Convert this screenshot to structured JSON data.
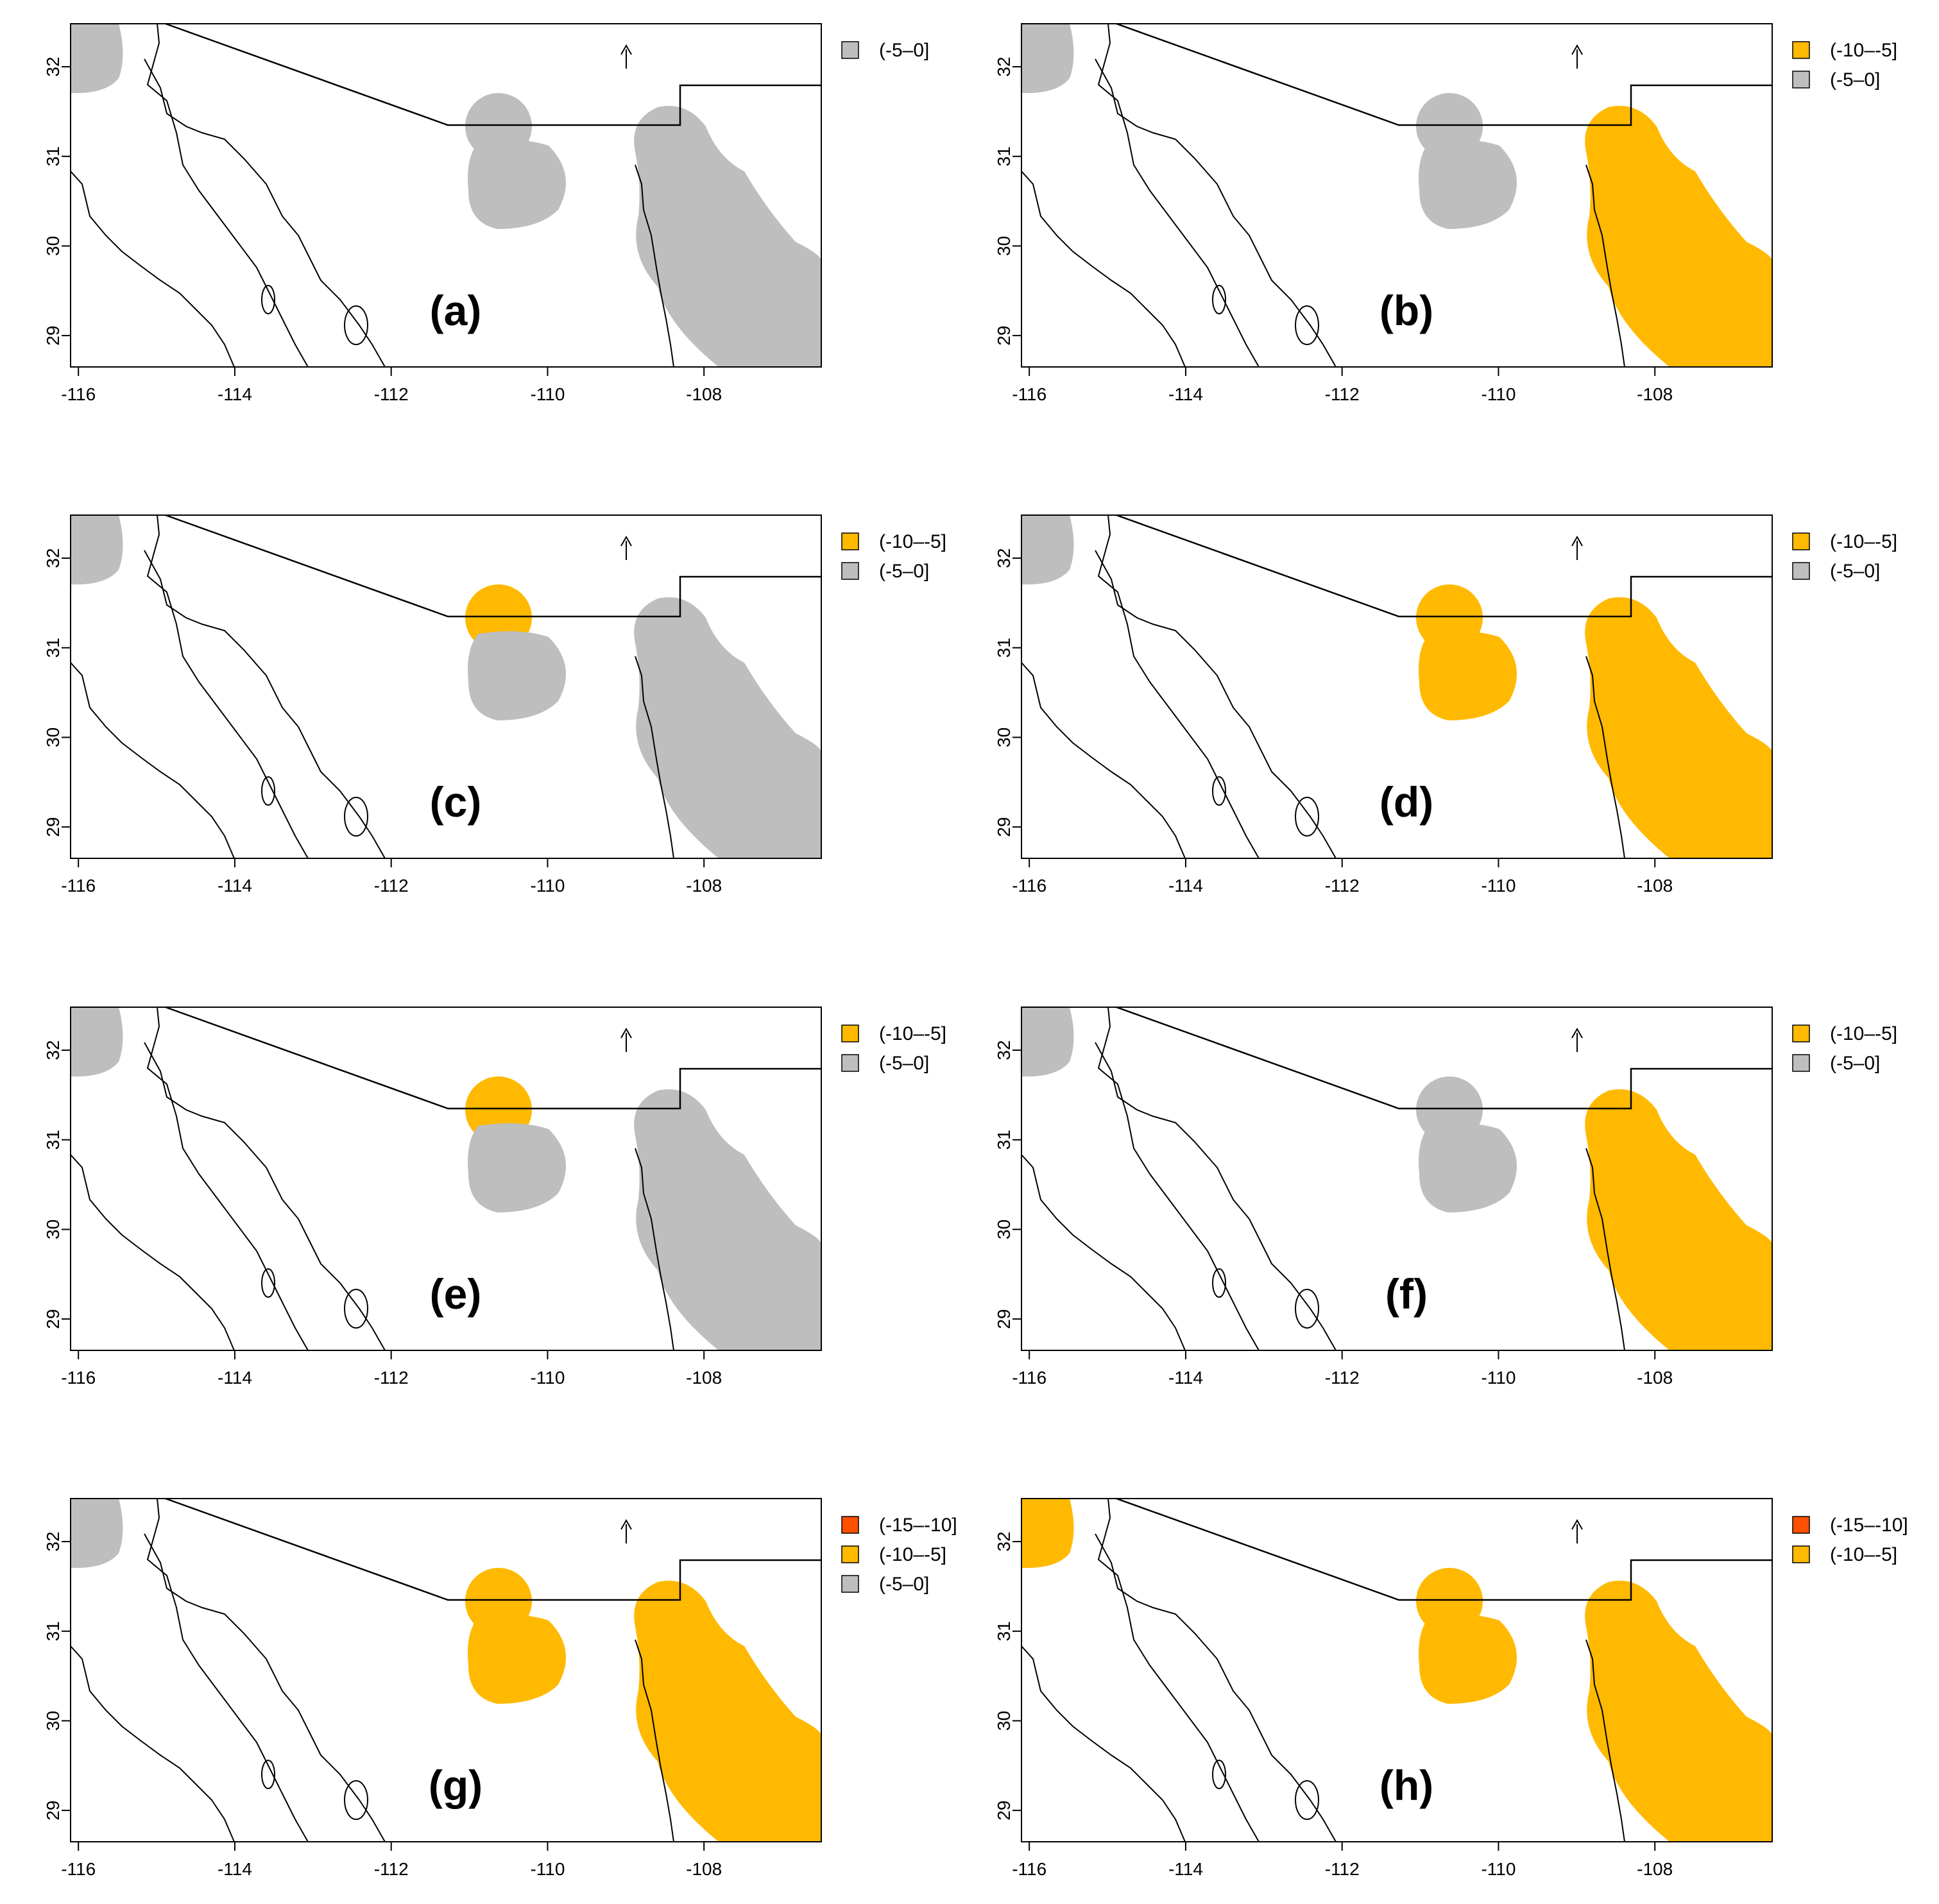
{
  "figure": {
    "x_ticks": [
      "-116",
      "-114",
      "-112",
      "-110",
      "-108"
    ],
    "y_ticks": [
      "29",
      "30",
      "31",
      "32"
    ],
    "north_label": "N",
    "colors": {
      "gray": "#bebebe",
      "orange": "#ffb900",
      "red": "#ff5000",
      "outline": "#000000"
    },
    "panels": [
      {
        "id": "a",
        "label": "(a)",
        "legend": [
          {
            "text": "(-5–0]",
            "color": "#bebebe"
          }
        ],
        "fill": {
          "nw_blob": "#bebebe",
          "center_upper": "#bebebe",
          "center_lower": "#bebebe",
          "east": "#bebebe"
        }
      },
      {
        "id": "b",
        "label": "(b)",
        "legend": [
          {
            "text": "(-10–-5]",
            "color": "#ffb900"
          },
          {
            "text": "(-5–0]",
            "color": "#bebebe"
          }
        ],
        "fill": {
          "nw_blob": "#bebebe",
          "center_upper": "#bebebe",
          "center_lower": "#bebebe",
          "east": "#ffb900"
        }
      },
      {
        "id": "c",
        "label": "(c)",
        "legend": [
          {
            "text": "(-10–-5]",
            "color": "#ffb900"
          },
          {
            "text": "(-5–0]",
            "color": "#bebebe"
          }
        ],
        "fill": {
          "nw_blob": "#bebebe",
          "center_upper": "#ffb900",
          "center_lower": "#bebebe",
          "east": "#bebebe"
        }
      },
      {
        "id": "d",
        "label": "(d)",
        "legend": [
          {
            "text": "(-10–-5]",
            "color": "#ffb900"
          },
          {
            "text": "(-5–0]",
            "color": "#bebebe"
          }
        ],
        "fill": {
          "nw_blob": "#bebebe",
          "center_upper": "#ffb900",
          "center_lower": "#ffb900",
          "east": "#ffb900"
        }
      },
      {
        "id": "e",
        "label": "(e)",
        "legend": [
          {
            "text": "(-10–-5]",
            "color": "#ffb900"
          },
          {
            "text": "(-5–0]",
            "color": "#bebebe"
          }
        ],
        "fill": {
          "nw_blob": "#bebebe",
          "center_upper": "#ffb900",
          "center_lower": "#bebebe",
          "east": "#bebebe"
        }
      },
      {
        "id": "f",
        "label": "(f)",
        "legend": [
          {
            "text": "(-10–-5]",
            "color": "#ffb900"
          },
          {
            "text": "(-5–0]",
            "color": "#bebebe"
          }
        ],
        "fill": {
          "nw_blob": "#bebebe",
          "center_upper": "#bebebe",
          "center_lower": "#bebebe",
          "east": "#ffb900"
        }
      },
      {
        "id": "g",
        "label": "(g)",
        "legend": [
          {
            "text": "(-15–-10]",
            "color": "#ff5000"
          },
          {
            "text": "(-10–-5]",
            "color": "#ffb900"
          },
          {
            "text": "(-5–0]",
            "color": "#bebebe"
          }
        ],
        "fill": {
          "nw_blob": "#bebebe",
          "center_upper": "#ffb900",
          "center_lower": "#ffb900",
          "east": "#ffb900"
        }
      },
      {
        "id": "h",
        "label": "(h)",
        "legend": [
          {
            "text": "(-15–-10]",
            "color": "#ff5000"
          },
          {
            "text": "(-10–-5]",
            "color": "#ffb900"
          }
        ],
        "fill": {
          "nw_blob": "#ffb900",
          "center_upper": "#ffb900",
          "center_lower": "#ffb900",
          "east": "#ffb900"
        }
      }
    ]
  }
}
